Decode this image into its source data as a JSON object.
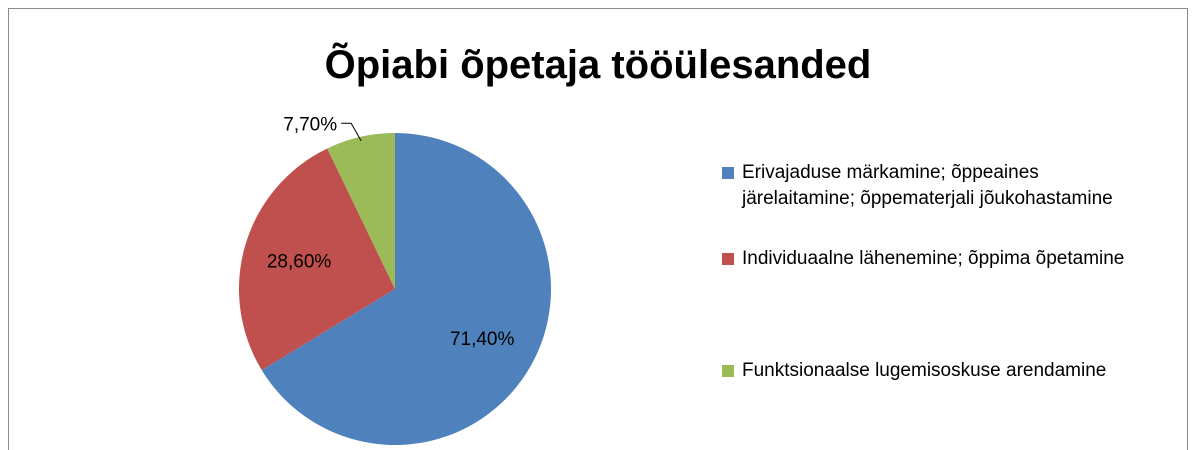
{
  "chart_data": {
    "type": "pie",
    "title": "Õpiabi õpetaja tööülesanded",
    "categories": [
      "Erivajaduse märkamine; õppeaines järelaitamine; õppematerjali jõukohastamine",
      "Individuaalne lähenemine; õppima õpetamine",
      "Funktsionaalse lugemisoskuse arendamine"
    ],
    "values": [
      71.4,
      28.6,
      7.7
    ],
    "value_labels": [
      "71,40%",
      "28,60%",
      "7,70%"
    ],
    "colors": [
      "#4f81bd",
      "#c0504d",
      "#9bbb59"
    ],
    "legend": "right"
  }
}
